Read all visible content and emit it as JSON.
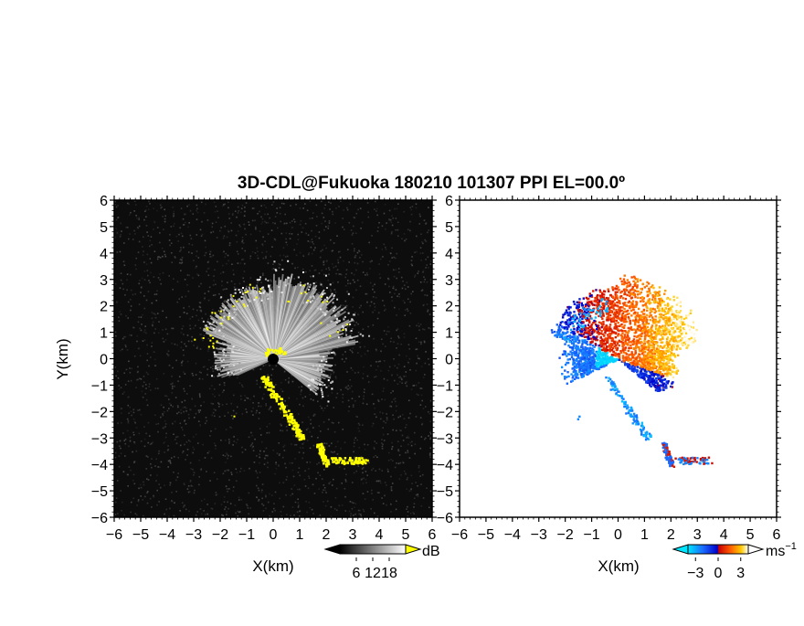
{
  "figure": {
    "title": "3D-CDL@Fukuoka 180210 101307 PPI EL=00.0º"
  },
  "chart_data": [
    {
      "type": "heatmap",
      "name": "reflectivity-ppi",
      "xlabel": "X(km)",
      "ylabel": "Y(km)",
      "xlim": [
        -6,
        6
      ],
      "ylim": [
        -6,
        6
      ],
      "x_ticks": [
        "−6",
        "−5",
        "−4",
        "−3",
        "−2",
        "−1",
        "0",
        "1",
        "2",
        "3",
        "4",
        "5",
        "6"
      ],
      "y_ticks": [
        "6",
        "5",
        "4",
        "3",
        "2",
        "1",
        "0",
        "−1",
        "−2",
        "−3",
        "−4",
        "−5",
        "−6"
      ],
      "colorbar": {
        "unit": "dB",
        "ticks": [
          "6",
          "12",
          "18"
        ],
        "tick_values": [
          6,
          12,
          18
        ],
        "range": [
          0,
          24
        ],
        "colors": [
          "#000000",
          "#ffffff"
        ],
        "overflow_color": "#ffff00"
      },
      "background_color": "#0d0d0d",
      "echo_sector_deg": [
        -40,
        210
      ],
      "echo_range_km": [
        0,
        3.6
      ],
      "high_return_color": "#ffff00"
    },
    {
      "type": "heatmap",
      "name": "doppler-velocity-ppi",
      "xlabel": "X(km)",
      "ylabel": "",
      "xlim": [
        -6,
        6
      ],
      "ylim": [
        -6,
        6
      ],
      "x_ticks": [
        "−6",
        "−5",
        "−4",
        "−3",
        "−2",
        "−1",
        "0",
        "1",
        "2",
        "3",
        "4",
        "5",
        "6"
      ],
      "y_ticks": [
        "6",
        "5",
        "4",
        "3",
        "2",
        "1",
        "0",
        "−1",
        "−2",
        "−3",
        "−4",
        "−5",
        "−6"
      ],
      "colorbar": {
        "unit": "ms",
        "unit_sup": "−1",
        "ticks": [
          "−3",
          "0",
          "3"
        ],
        "tick_values": [
          -3,
          0,
          3
        ],
        "range": [
          -4,
          4
        ],
        "colors": [
          "#00e5ff",
          "#1a6aff",
          "#0000c8",
          "#c80000",
          "#ff5a00",
          "#ffc800",
          "#ffffff"
        ]
      },
      "background_color": "#ffffff"
    }
  ]
}
